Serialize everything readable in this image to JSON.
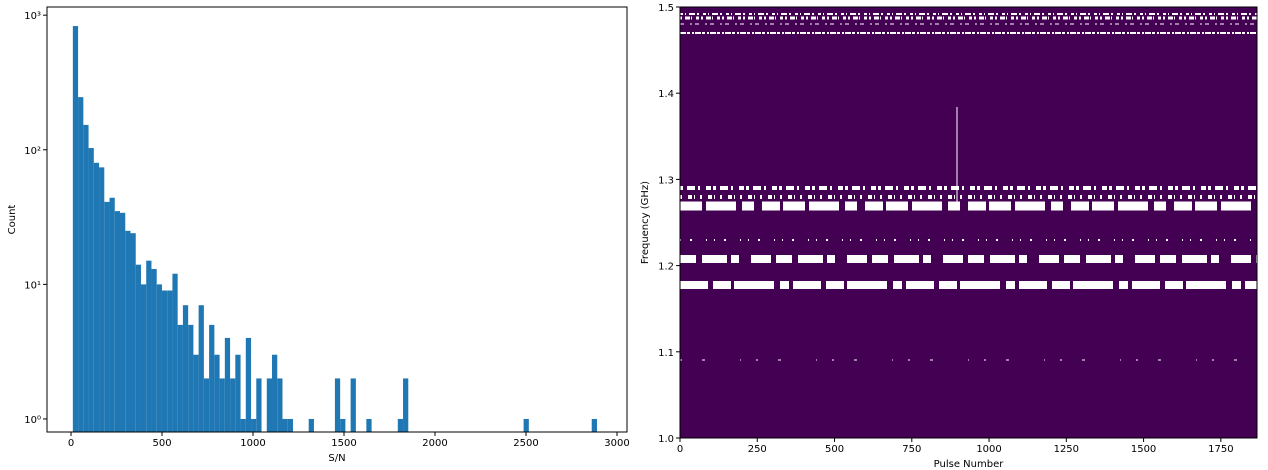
{
  "chart_data": [
    {
      "type": "histogram",
      "xlabel": "S/N",
      "ylabel": "Count",
      "color": "#1f77b4",
      "log_y": true,
      "bins": [
        10,
        38.8,
        67.6,
        96.4,
        125.2,
        154,
        182.8,
        211.6,
        240.4,
        269.2,
        298,
        326.8,
        355.6,
        384.4,
        413.2,
        442,
        470.8,
        499.6,
        528.4,
        557.2,
        586,
        614.8,
        643.6,
        672.4,
        701.2,
        730,
        758.8,
        787.6,
        816.4,
        845.2,
        874,
        902.8,
        931.6,
        960.4,
        989.2,
        1018,
        1046.8,
        1075.6,
        1104.4,
        1133.2,
        1162,
        1190.8,
        1219.6,
        1248.4,
        1277.2,
        1306,
        1334.8,
        1363.6,
        1392.4,
        1421.2,
        1450,
        1478.8,
        1507.6,
        1536.4,
        1565.2,
        1594,
        1622.8,
        1651.6,
        1680.4,
        1709.2,
        1738,
        1766.8,
        1795.6,
        1824.4,
        1853.2,
        1882,
        1910.8,
        1939.6,
        1968.4,
        1997.2,
        2026,
        2054.8,
        2083.6,
        2112.4,
        2141.2,
        2170,
        2198.8,
        2227.6,
        2256.4,
        2285.2,
        2314,
        2342.8,
        2371.6,
        2400.4,
        2429.2,
        2458,
        2486.8,
        2515.6,
        2544.4,
        2573.2,
        2602,
        2630.8,
        2659.6,
        2688.4,
        2717.2,
        2746,
        2774.8,
        2803.6,
        2832.4,
        2861.2,
        2890
      ],
      "counts": [
        830,
        246,
        153,
        103,
        80,
        74,
        41,
        44,
        35,
        34,
        25,
        24,
        14,
        10,
        15,
        13,
        10,
        9,
        9,
        12,
        5,
        7,
        5,
        3,
        7,
        2,
        5,
        3,
        2,
        4,
        2,
        3,
        1,
        4,
        1,
        2,
        0,
        2,
        3,
        2,
        1,
        1,
        0,
        0,
        0,
        1,
        0,
        0,
        0,
        0,
        2,
        1,
        0,
        2,
        0,
        0,
        1,
        0,
        0,
        0,
        0,
        0,
        1,
        2,
        0,
        0,
        0,
        0,
        0,
        0,
        0,
        0,
        0,
        0,
        0,
        0,
        0,
        0,
        0,
        0,
        0,
        0,
        0,
        0,
        0,
        0,
        1,
        0,
        0,
        0,
        0,
        0,
        0,
        0,
        0,
        0,
        0,
        0,
        0,
        1
      ],
      "xlim": [
        -132,
        3055
      ],
      "xticks": [
        0,
        500,
        1000,
        1500,
        2000,
        2500,
        3000
      ],
      "ylim": [
        0.8,
        1150
      ],
      "yticks": [
        {
          "value": 1,
          "label": "10⁰"
        },
        {
          "value": 10,
          "label": "10¹"
        },
        {
          "value": 100,
          "label": "10²"
        },
        {
          "value": 1000,
          "label": "10³"
        }
      ]
    },
    {
      "type": "image",
      "xlabel": "Pulse Number",
      "ylabel": "Frequency (GHz)",
      "color": "#440154",
      "xlim": [
        0,
        1867
      ],
      "xticks": [
        0,
        250,
        500,
        750,
        1000,
        1250,
        1500,
        1750
      ],
      "ylim": [
        1.0,
        1.5
      ],
      "yticks": [
        {
          "value": 1.0,
          "label": "1.0"
        },
        1.1,
        1.2,
        1.3,
        1.4,
        1.5
      ]
    }
  ]
}
